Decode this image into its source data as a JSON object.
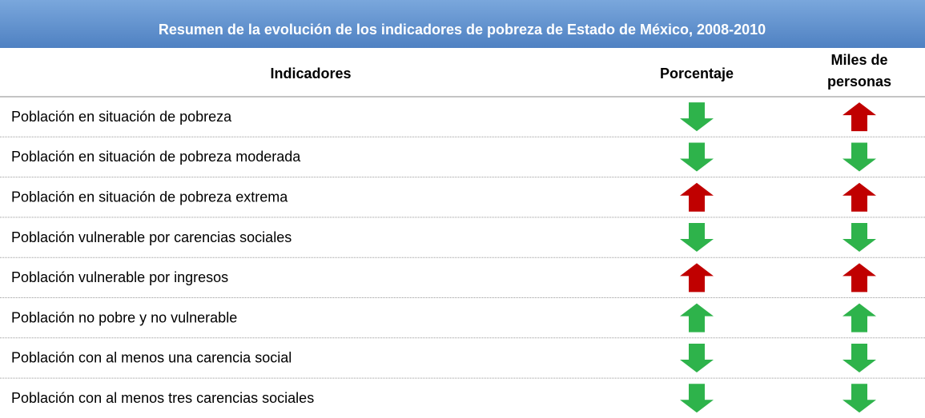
{
  "header": {
    "title": "Resumen de la evolución de los indicadores de pobreza de Estado de México, 2008-2010"
  },
  "table": {
    "columns": [
      "Indicadores",
      "Porcentaje",
      "Miles de personas"
    ],
    "rows": [
      {
        "indicator": "Población en situación de pobreza",
        "percentage": {
          "direction": "down",
          "color": "#2eb34b"
        },
        "thousands": {
          "direction": "up",
          "color": "#c00000"
        }
      },
      {
        "indicator": "Población en situación de pobreza moderada",
        "percentage": {
          "direction": "down",
          "color": "#2eb34b"
        },
        "thousands": {
          "direction": "down",
          "color": "#2eb34b"
        }
      },
      {
        "indicator": "Población en situación de pobreza extrema",
        "percentage": {
          "direction": "up",
          "color": "#c00000"
        },
        "thousands": {
          "direction": "up",
          "color": "#c00000"
        }
      },
      {
        "indicator": "Población vulnerable por carencias sociales",
        "percentage": {
          "direction": "down",
          "color": "#2eb34b"
        },
        "thousands": {
          "direction": "down",
          "color": "#2eb34b"
        }
      },
      {
        "indicator": "Población vulnerable por ingresos",
        "percentage": {
          "direction": "up",
          "color": "#c00000"
        },
        "thousands": {
          "direction": "up",
          "color": "#c00000"
        }
      },
      {
        "indicator": "Población no pobre y no vulnerable",
        "percentage": {
          "direction": "up",
          "color": "#2eb34b"
        },
        "thousands": {
          "direction": "up",
          "color": "#2eb34b"
        }
      },
      {
        "indicator": "Población con al menos una carencia social",
        "percentage": {
          "direction": "down",
          "color": "#2eb34b"
        },
        "thousands": {
          "direction": "down",
          "color": "#2eb34b"
        }
      },
      {
        "indicator": "Población con al menos tres carencias sociales",
        "percentage": {
          "direction": "down",
          "color": "#2eb34b"
        },
        "thousands": {
          "direction": "down",
          "color": "#2eb34b"
        }
      }
    ]
  }
}
